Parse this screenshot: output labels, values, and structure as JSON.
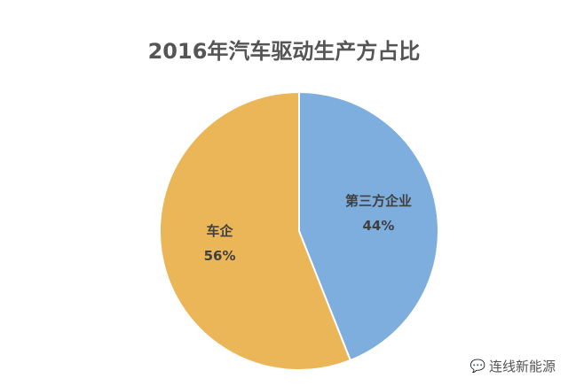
{
  "chart_data": {
    "type": "pie",
    "title": "2016年汽车驱动生产方占比",
    "slices": [
      {
        "label": "第三方企业",
        "value": 44,
        "value_label": "44%",
        "color": "#7DAEDE"
      },
      {
        "label": "车企",
        "value": 56,
        "value_label": "56%",
        "color": "#EBB657"
      }
    ],
    "start_angle": "top",
    "direction": "clockwise",
    "legend": "none"
  },
  "watermark": {
    "icon": "wechat-icon",
    "text": "连线新能源"
  }
}
